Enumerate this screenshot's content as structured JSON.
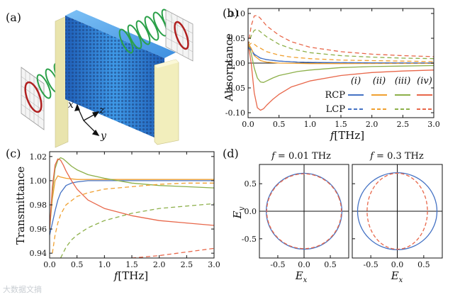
{
  "colors": {
    "i": "#4472c4",
    "ii": "#f0a030",
    "iii": "#8db04a",
    "iv": "#e8674a",
    "axis": "#111111",
    "metal": "#2a78d0",
    "helix": "#2aa048",
    "ring": "#b02020",
    "block": "#f2eebc"
  },
  "panel_a": {
    "label": "(a)",
    "axes": {
      "x": "x",
      "y": "y",
      "z": "z"
    }
  },
  "chart_data": [
    {
      "id": "b",
      "panel_label": "(b)",
      "type": "line",
      "ylabel": "Absorptance",
      "xlabel": "f [THz]",
      "xlabel_var": "f",
      "xlabel_unit": "[THz]",
      "xlim": [
        0,
        3.0
      ],
      "ylim": [
        -0.11,
        0.11
      ],
      "xticks": [
        "0.0",
        "0.5",
        "1.0",
        "1.5",
        "2.0",
        "2.5",
        "3.0"
      ],
      "yticks": [
        "-0.10",
        "-0.05",
        "0.00",
        "0.05",
        "0.10"
      ],
      "legend": {
        "position": "bottom-right",
        "cases": [
          "(i)",
          "(ii)",
          "(iii)",
          "(iv)"
        ],
        "rows": [
          "RCP",
          "LCP"
        ]
      },
      "series": [
        {
          "name": "(i) RCP",
          "color_key": "i",
          "dash": false,
          "x": [
            0,
            0.05,
            0.1,
            0.2,
            0.3,
            0.5,
            0.8,
            1.0,
            1.5,
            2.0,
            2.5,
            3.0
          ],
          "y": [
            0.035,
            0.028,
            0.018,
            0.01,
            0.007,
            0.004,
            0.002,
            0.0015,
            0.0008,
            0.0005,
            0.0003,
            0.0002
          ]
        },
        {
          "name": "(ii) RCP",
          "color_key": "ii",
          "dash": false,
          "x": [
            0,
            0.05,
            0.1,
            0.2,
            0.3,
            0.5,
            0.8,
            1.0,
            1.5,
            2.0,
            2.5,
            3.0
          ],
          "y": [
            0.04,
            0.03,
            0.015,
            0.005,
            0.002,
            0.0,
            -0.0005,
            -0.001,
            -0.001,
            -0.0008,
            -0.0006,
            -0.0005
          ]
        },
        {
          "name": "(iii) RCP",
          "color_key": "iii",
          "dash": false,
          "x": [
            0,
            0.05,
            0.1,
            0.15,
            0.2,
            0.25,
            0.3,
            0.4,
            0.5,
            0.8,
            1.0,
            1.5,
            2.0,
            2.5,
            3.0
          ],
          "y": [
            0.04,
            0.02,
            -0.01,
            -0.03,
            -0.038,
            -0.039,
            -0.036,
            -0.03,
            -0.025,
            -0.017,
            -0.014,
            -0.009,
            -0.007,
            -0.006,
            -0.005
          ]
        },
        {
          "name": "(iv) RCP",
          "color_key": "iv",
          "dash": false,
          "x": [
            0,
            0.05,
            0.1,
            0.15,
            0.2,
            0.25,
            0.3,
            0.4,
            0.5,
            0.7,
            1.0,
            1.5,
            2.0,
            2.5,
            3.0
          ],
          "y": [
            0.04,
            0.0,
            -0.06,
            -0.09,
            -0.095,
            -0.092,
            -0.085,
            -0.073,
            -0.063,
            -0.048,
            -0.036,
            -0.025,
            -0.019,
            -0.016,
            -0.014
          ]
        },
        {
          "name": "(i) LCP",
          "color_key": "i",
          "dash": true,
          "x": [
            0,
            0.05,
            0.1,
            0.2,
            0.3,
            0.5,
            0.8,
            1.0,
            1.5,
            2.0,
            2.5,
            3.0
          ],
          "y": [
            0.032,
            0.025,
            0.017,
            0.01,
            0.007,
            0.004,
            0.002,
            0.0015,
            0.0008,
            0.0005,
            0.0003,
            0.0002
          ]
        },
        {
          "name": "(ii) LCP",
          "color_key": "ii",
          "dash": true,
          "x": [
            0,
            0.05,
            0.1,
            0.15,
            0.2,
            0.3,
            0.5,
            0.7,
            1.0,
            1.5,
            2.0,
            2.5,
            3.0
          ],
          "y": [
            0.035,
            0.04,
            0.038,
            0.033,
            0.03,
            0.023,
            0.016,
            0.012,
            0.009,
            0.006,
            0.005,
            0.004,
            0.003
          ]
        },
        {
          "name": "(iii) LCP",
          "color_key": "iii",
          "dash": true,
          "x": [
            0,
            0.05,
            0.1,
            0.15,
            0.2,
            0.3,
            0.5,
            0.7,
            1.0,
            1.5,
            2.0,
            2.5,
            3.0
          ],
          "y": [
            0.035,
            0.055,
            0.066,
            0.068,
            0.063,
            0.053,
            0.038,
            0.029,
            0.021,
            0.015,
            0.012,
            0.01,
            0.009
          ]
        },
        {
          "name": "(iv) LCP",
          "color_key": "iv",
          "dash": true,
          "x": [
            0,
            0.05,
            0.1,
            0.15,
            0.2,
            0.3,
            0.5,
            0.7,
            1.0,
            1.5,
            2.0,
            2.5,
            3.0
          ],
          "y": [
            0.035,
            0.075,
            0.095,
            0.096,
            0.09,
            0.075,
            0.056,
            0.043,
            0.032,
            0.023,
            0.018,
            0.015,
            0.013
          ]
        }
      ]
    },
    {
      "id": "c",
      "panel_label": "(c)",
      "type": "line",
      "ylabel": "Transmittance",
      "xlabel": "f [THz]",
      "xlabel_var": "f",
      "xlabel_unit": "[THz]",
      "xlim": [
        0,
        3.0
      ],
      "ylim": [
        0.936,
        1.024
      ],
      "xticks": [
        "0.0",
        "0.5",
        "1.0",
        "1.5",
        "2.0",
        "2.5",
        "3.0"
      ],
      "yticks": [
        "0.94",
        "0.96",
        "0.98",
        "1.00",
        "1.02"
      ],
      "series": [
        {
          "name": "(i) RCP",
          "color_key": "i",
          "dash": false,
          "x": [
            0,
            0.05,
            0.1,
            0.15,
            0.2,
            0.3,
            0.4,
            0.5,
            0.7,
            1.0,
            1.5,
            2.0,
            2.5,
            3.0
          ],
          "y": [
            0.955,
            0.965,
            0.975,
            0.984,
            0.99,
            0.996,
            0.998,
            0.999,
            1.0,
            1.0,
            1.0,
            1.0,
            1.0,
            1.0
          ]
        },
        {
          "name": "(ii) RCP",
          "color_key": "ii",
          "dash": false,
          "x": [
            0,
            0.05,
            0.1,
            0.15,
            0.2,
            0.3,
            0.5,
            0.7,
            1.0,
            1.5,
            2.0,
            2.5,
            3.0
          ],
          "y": [
            0.96,
            0.985,
            1.0,
            1.004,
            1.003,
            1.002,
            1.001,
            1.001,
            1.001,
            1.001,
            1.001,
            1.001,
            1.001
          ]
        },
        {
          "name": "(iii) RCP",
          "color_key": "iii",
          "dash": false,
          "x": [
            0,
            0.05,
            0.1,
            0.15,
            0.2,
            0.25,
            0.3,
            0.4,
            0.5,
            0.7,
            1.0,
            1.5,
            2.0,
            2.5,
            3.0
          ],
          "y": [
            0.96,
            0.99,
            1.01,
            1.017,
            1.019,
            1.018,
            1.016,
            1.012,
            1.009,
            1.005,
            1.002,
            0.998,
            0.996,
            0.995,
            0.994
          ]
        },
        {
          "name": "(iv) RCP",
          "color_key": "iv",
          "dash": false,
          "x": [
            0,
            0.05,
            0.1,
            0.15,
            0.2,
            0.25,
            0.3,
            0.4,
            0.5,
            0.7,
            1.0,
            1.5,
            2.0,
            2.5,
            3.0
          ],
          "y": [
            0.96,
            0.995,
            1.013,
            1.018,
            1.017,
            1.013,
            1.008,
            1.0,
            0.993,
            0.984,
            0.977,
            0.971,
            0.967,
            0.965,
            0.963
          ]
        },
        {
          "name": "(ii) LCP",
          "color_key": "ii",
          "dash": true,
          "x": [
            0.05,
            0.1,
            0.15,
            0.2,
            0.3,
            0.5,
            0.7,
            1.0,
            1.5,
            2.0,
            2.5,
            3.0
          ],
          "y": [
            0.94,
            0.955,
            0.965,
            0.972,
            0.98,
            0.987,
            0.99,
            0.993,
            0.995,
            0.997,
            0.998,
            0.998
          ]
        },
        {
          "name": "(iii) LCP",
          "color_key": "iii",
          "dash": true,
          "x": [
            0.2,
            0.3,
            0.4,
            0.5,
            0.7,
            1.0,
            1.5,
            2.0,
            2.5,
            3.0
          ],
          "y": [
            0.936,
            0.945,
            0.951,
            0.955,
            0.961,
            0.967,
            0.973,
            0.977,
            0.979,
            0.981
          ]
        },
        {
          "name": "(iv) LCP",
          "color_key": "iv",
          "dash": true,
          "x": [
            1.5,
            2.0,
            2.5,
            3.0
          ],
          "y": [
            0.936,
            0.938,
            0.941,
            0.944
          ]
        }
      ]
    },
    {
      "id": "d1",
      "panel_label": "(d)",
      "type": "scatter",
      "subtitle": "f = 0.01 THz",
      "subtitle_var": "f",
      "subtitle_value": "= 0.01 THz",
      "ylabel": "Ey",
      "xlabel": "Ex",
      "xlim": [
        -0.85,
        0.85
      ],
      "ylim": [
        -0.85,
        0.85
      ],
      "xticks": [
        "-0.5",
        "0.0",
        "0.5"
      ],
      "yticks": [
        "-0.5",
        "0.0",
        "0.5"
      ],
      "ellipses": [
        {
          "name": "(i) solid",
          "color_key": "i",
          "dash": false,
          "a": 0.72,
          "b": 0.69,
          "tilt_deg": -20
        },
        {
          "name": "(iv) dashed",
          "color_key": "iv",
          "dash": true,
          "a": 0.71,
          "b": 0.68,
          "tilt_deg": -22
        }
      ]
    },
    {
      "id": "d2",
      "type": "scatter",
      "subtitle": "f = 0.3 THz",
      "subtitle_var": "f",
      "subtitle_value": "= 0.3 THz",
      "xlabel": "Ex",
      "xlim": [
        -0.85,
        0.85
      ],
      "ylim": [
        -0.85,
        0.85
      ],
      "xticks": [
        "-0.5",
        "0.0",
        "0.5"
      ],
      "yticks": [
        "-0.5",
        "0.0",
        "0.5"
      ],
      "ellipses": [
        {
          "name": "(i) solid",
          "color_key": "i",
          "dash": false,
          "a": 0.75,
          "b": 0.7,
          "tilt_deg": 0
        },
        {
          "name": "(iv) dashed",
          "color_key": "iv",
          "dash": true,
          "a": 0.57,
          "b": 0.69,
          "tilt_deg": 0
        }
      ]
    }
  ],
  "watermark": "大数据文摘"
}
